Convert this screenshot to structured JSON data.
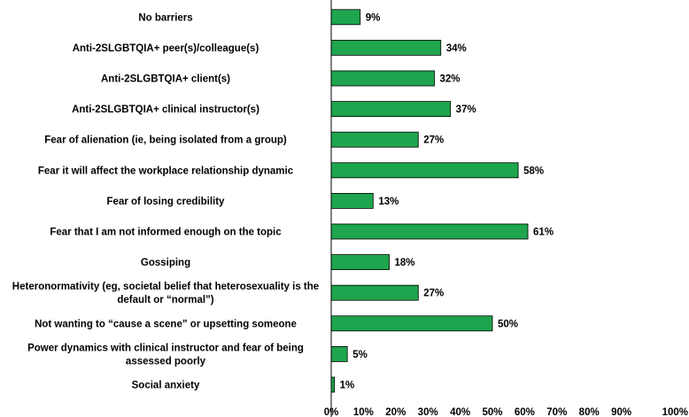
{
  "chart_data": {
    "type": "bar",
    "orientation": "horizontal",
    "title": "",
    "xlabel": "",
    "ylabel": "",
    "xlim": [
      0,
      100
    ],
    "grid": false,
    "legend": "none",
    "bar_color": "#1ea54d",
    "bar_stroke": "#000000",
    "tick_values": [
      0,
      10,
      20,
      30,
      40,
      50,
      60,
      70,
      80,
      90,
      100
    ],
    "tick_labels": [
      "0%",
      "10%",
      "20%",
      "30%",
      "40%",
      "50%",
      "60%",
      "70%",
      "80%",
      "90%",
      "100%"
    ],
    "categories": [
      [
        "No barriers"
      ],
      [
        "Anti-2SLGBTQIA+ peer(s)/colleague(s)"
      ],
      [
        "Anti-2SLGBTQIA+ client(s)"
      ],
      [
        "Anti-2SLGBTQIA+ clinical instructor(s)"
      ],
      [
        "Fear of alienation (ie, being isolated from a group)"
      ],
      [
        "Fear it will affect the workplace relationship dynamic"
      ],
      [
        "Fear of losing credibility"
      ],
      [
        "Fear that I am not informed enough on the topic"
      ],
      [
        "Gossiping"
      ],
      [
        "Heteronormativity (eg, societal belief that heterosexuality is the",
        "default or “normal”)"
      ],
      [
        "Not wanting to “cause a scene” or upsetting someone"
      ],
      [
        "Power dynamics with clinical instructor and fear of being",
        "assessed poorly"
      ],
      [
        "Social anxiety"
      ]
    ],
    "values": [
      9,
      34,
      32,
      37,
      27,
      58,
      13,
      61,
      18,
      27,
      50,
      5,
      1
    ],
    "value_labels": [
      "9%",
      "34%",
      "32%",
      "37%",
      "27%",
      "58%",
      "13%",
      "61%",
      "18%",
      "27%",
      "50%",
      "5%",
      "1%"
    ]
  }
}
